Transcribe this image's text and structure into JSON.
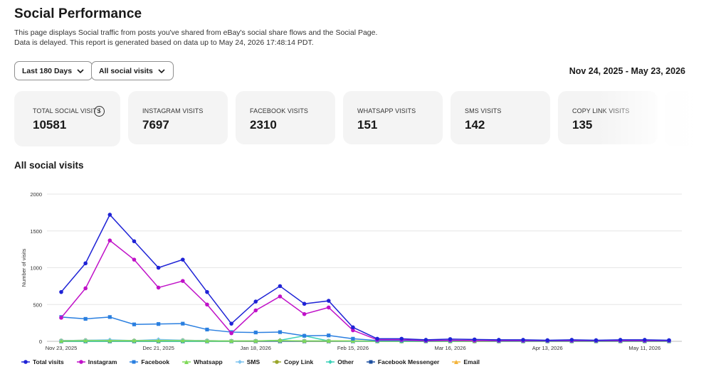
{
  "page": {
    "title": "Social Performance",
    "description_line1": "This page displays Social traffic from posts you've shared from eBay's social share flows and the Social Page.",
    "description_line2": "Data is delayed. This report is generated based on data up to May 24, 2026 17:48:14 PDT."
  },
  "filters": {
    "period": "Last 180 Days",
    "visit_type": "All social visits",
    "date_range": "Nov 24, 2025 - May 23, 2026"
  },
  "cards": [
    {
      "label": "TOTAL SOCIAL VISITS",
      "value": "10581"
    },
    {
      "label": "INSTAGRAM VISITS",
      "value": "7697"
    },
    {
      "label": "FACEBOOK VISITS",
      "value": "2310"
    },
    {
      "label": "WHATSAPP VISITS",
      "value": "151"
    },
    {
      "label": "SMS VISITS",
      "value": "142"
    },
    {
      "label": "COPY LINK VISITS",
      "value": "135"
    }
  ],
  "section_title": "All social visits",
  "chart_data": {
    "type": "line",
    "ylabel": "Number of visits",
    "ylim": [
      0,
      2000
    ],
    "yticks": [
      0,
      500,
      1000,
      1500,
      2000
    ],
    "xticks": [
      {
        "index": 0,
        "label": "Nov 23, 2025"
      },
      {
        "index": 4,
        "label": "Dec 21, 2025"
      },
      {
        "index": 8,
        "label": "Jan 18, 2026"
      },
      {
        "index": 12,
        "label": "Feb 15, 2026"
      },
      {
        "index": 16,
        "label": "Mar 16, 2026"
      },
      {
        "index": 20,
        "label": "Apr 13, 2026"
      },
      {
        "index": 24,
        "label": "May 11, 2026"
      }
    ],
    "points_count": 26,
    "grid": true,
    "legend_position": "bottom",
    "series": [
      {
        "name": "Total visits",
        "color": "#1f23d6",
        "marker": "circle",
        "values": [
          670,
          1060,
          1720,
          1360,
          1000,
          1110,
          670,
          240,
          540,
          750,
          510,
          550,
          190,
          35,
          35,
          20,
          30,
          25,
          20,
          20,
          15,
          20,
          15,
          20,
          20,
          15
        ]
      },
      {
        "name": "Instagram",
        "color": "#c011c8",
        "marker": "circle",
        "values": [
          320,
          720,
          1370,
          1110,
          730,
          820,
          500,
          110,
          420,
          610,
          370,
          460,
          150,
          20,
          20,
          10,
          15,
          10,
          10,
          10,
          10,
          10,
          10,
          10,
          10,
          10
        ]
      },
      {
        "name": "Facebook",
        "color": "#2a7fe0",
        "marker": "square",
        "values": [
          330,
          305,
          330,
          230,
          235,
          240,
          160,
          125,
          120,
          125,
          75,
          80,
          35,
          10,
          10,
          5,
          10,
          10,
          5,
          5,
          5,
          5,
          5,
          5,
          5,
          5
        ]
      },
      {
        "name": "Whatsapp",
        "color": "#7ed957",
        "marker": "triangle",
        "values": [
          5,
          10,
          10,
          10,
          10,
          10,
          5,
          5,
          5,
          10,
          5,
          5,
          5,
          0,
          0,
          0,
          0,
          0,
          0,
          0,
          0,
          0,
          0,
          0,
          0,
          0
        ]
      },
      {
        "name": "SMS",
        "color": "#7fc4ef",
        "marker": "diamond",
        "values": [
          10,
          15,
          20,
          10,
          25,
          15,
          10,
          5,
          5,
          5,
          5,
          5,
          0,
          0,
          0,
          0,
          0,
          0,
          0,
          0,
          0,
          0,
          0,
          0,
          0,
          0
        ]
      },
      {
        "name": "Copy Link",
        "color": "#9aa62a",
        "marker": "circle",
        "values": [
          10,
          15,
          10,
          10,
          10,
          15,
          10,
          5,
          5,
          10,
          5,
          5,
          5,
          0,
          0,
          0,
          0,
          0,
          0,
          0,
          0,
          0,
          0,
          0,
          0,
          0
        ]
      },
      {
        "name": "Other",
        "color": "#3bd1b8",
        "marker": "diamond",
        "values": [
          0,
          0,
          0,
          0,
          0,
          0,
          0,
          0,
          5,
          15,
          75,
          5,
          0,
          0,
          0,
          0,
          0,
          0,
          0,
          0,
          0,
          0,
          0,
          0,
          0,
          0
        ]
      },
      {
        "name": "Facebook Messenger",
        "color": "#1c4fa0",
        "marker": "square",
        "values": [
          0,
          0,
          0,
          0,
          0,
          0,
          0,
          0,
          0,
          0,
          0,
          0,
          0,
          0,
          0,
          0,
          0,
          0,
          0,
          0,
          0,
          0,
          0,
          0,
          0,
          0
        ]
      },
      {
        "name": "Email",
        "color": "#f4b43a",
        "marker": "triangle",
        "values": [
          0,
          0,
          0,
          0,
          0,
          0,
          0,
          0,
          0,
          0,
          0,
          0,
          0,
          0,
          0,
          0,
          0,
          0,
          0,
          0,
          0,
          0,
          0,
          0,
          0,
          0
        ]
      }
    ]
  }
}
